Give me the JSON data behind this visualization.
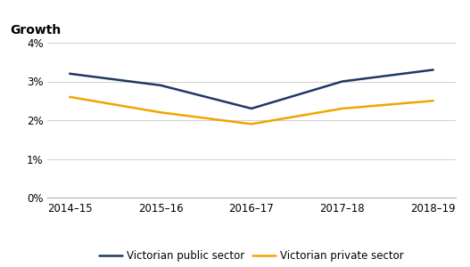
{
  "categories": [
    "2014–15",
    "2015–16",
    "2016–17",
    "2017–18",
    "2018–19"
  ],
  "public_sector": [
    0.032,
    0.029,
    0.023,
    0.03,
    0.033
  ],
  "private_sector": [
    0.026,
    0.022,
    0.019,
    0.023,
    0.025
  ],
  "public_color": "#1f3864",
  "private_color": "#f0a500",
  "public_label": "Victorian public sector",
  "private_label": "Victorian private sector",
  "ylabel": "Growth",
  "ylim": [
    0.0,
    0.04
  ],
  "yticks": [
    0.0,
    0.01,
    0.02,
    0.03,
    0.04
  ],
  "ytick_labels": [
    "0%",
    "1%",
    "2%",
    "3%",
    "4%"
  ],
  "axis_fontsize": 8.5,
  "ylabel_fontsize": 10,
  "legend_fontsize": 8.5,
  "line_width": 1.8,
  "background_color": "#ffffff",
  "grid_color": "#d0d0d0"
}
